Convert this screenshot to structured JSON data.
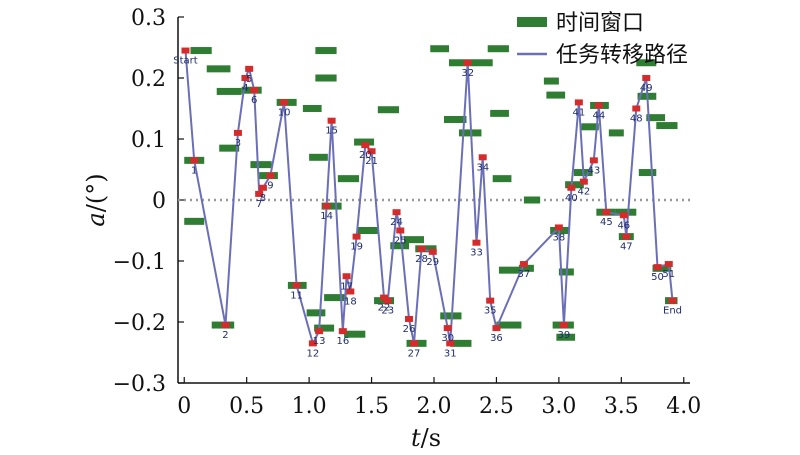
{
  "chart_data": {
    "type": "line",
    "xlabel": {
      "symbol": "t",
      "unit": "/s"
    },
    "ylabel": {
      "symbol": "a",
      "unit": "/(°)"
    },
    "xlim": [
      -0.05,
      4.05
    ],
    "ylim": [
      -0.3,
      0.3
    ],
    "xticks": [
      0.0,
      0.5,
      1.0,
      1.5,
      2.0,
      2.5,
      3.0,
      3.5,
      4.0
    ],
    "xtick_labels": [
      "0",
      "0.5",
      "1.0",
      "1.5",
      "2.0",
      "2.5",
      "3.0",
      "3.5",
      "4.0"
    ],
    "yticks": [
      0.3,
      0.2,
      0.1,
      0.0,
      -0.1,
      -0.2,
      -0.3
    ],
    "ytick_labels": [
      "0.3",
      "0.2",
      "0.1",
      "0",
      "−0.1",
      "−0.2",
      "−0.3"
    ],
    "zero_line": {
      "y": 0.0,
      "style": "dotted",
      "color": "#999999"
    },
    "legend": {
      "position": "top-right",
      "items": [
        {
          "name": "时间窗口",
          "color": "#2e7d32",
          "kind": "bar"
        },
        {
          "name": "任务转移路径",
          "color": "#6b6fb8",
          "kind": "line"
        }
      ]
    },
    "colors": {
      "window": "#2e7d32",
      "path": "#6b6fb8",
      "node": "#d62b2b",
      "label": "#1f2d6b"
    },
    "path": [
      {
        "label": "Start",
        "x": 0.01,
        "y": 0.245
      },
      {
        "label": "1",
        "x": 0.08,
        "y": 0.065
      },
      {
        "label": "2",
        "x": 0.33,
        "y": -0.205
      },
      {
        "label": "3",
        "x": 0.43,
        "y": 0.11
      },
      {
        "label": "4",
        "x": 0.49,
        "y": 0.2
      },
      {
        "label": "5",
        "x": 0.52,
        "y": 0.215
      },
      {
        "label": "6",
        "x": 0.56,
        "y": 0.18
      },
      {
        "label": "7",
        "x": 0.6,
        "y": 0.01
      },
      {
        "label": "8",
        "x": 0.63,
        "y": 0.02
      },
      {
        "label": "9",
        "x": 0.69,
        "y": 0.04
      },
      {
        "label": "10",
        "x": 0.8,
        "y": 0.16
      },
      {
        "label": "11",
        "x": 0.9,
        "y": -0.14
      },
      {
        "label": "12",
        "x": 1.03,
        "y": -0.235
      },
      {
        "label": "13",
        "x": 1.08,
        "y": -0.215
      },
      {
        "label": "14",
        "x": 1.14,
        "y": -0.01
      },
      {
        "label": "15",
        "x": 1.18,
        "y": 0.13
      },
      {
        "label": "16",
        "x": 1.27,
        "y": -0.215
      },
      {
        "label": "17",
        "x": 1.3,
        "y": -0.125
      },
      {
        "label": "18",
        "x": 1.33,
        "y": -0.15
      },
      {
        "label": "19",
        "x": 1.38,
        "y": -0.06
      },
      {
        "label": "20",
        "x": 1.45,
        "y": 0.09
      },
      {
        "label": "21",
        "x": 1.5,
        "y": 0.08
      },
      {
        "label": "22",
        "x": 1.6,
        "y": -0.16
      },
      {
        "label": "23",
        "x": 1.63,
        "y": -0.165
      },
      {
        "label": "24",
        "x": 1.7,
        "y": -0.02
      },
      {
        "label": "25",
        "x": 1.73,
        "y": -0.05
      },
      {
        "label": "26",
        "x": 1.8,
        "y": -0.195
      },
      {
        "label": "27",
        "x": 1.84,
        "y": -0.235
      },
      {
        "label": "28",
        "x": 1.9,
        "y": -0.08
      },
      {
        "label": "29",
        "x": 1.99,
        "y": -0.085
      },
      {
        "label": "30",
        "x": 2.11,
        "y": -0.21
      },
      {
        "label": "31",
        "x": 2.13,
        "y": -0.235
      },
      {
        "label": "32",
        "x": 2.27,
        "y": 0.225
      },
      {
        "label": "33",
        "x": 2.34,
        "y": -0.07
      },
      {
        "label": "34",
        "x": 2.39,
        "y": 0.07
      },
      {
        "label": "35",
        "x": 2.45,
        "y": -0.165
      },
      {
        "label": "36",
        "x": 2.5,
        "y": -0.21
      },
      {
        "label": "37",
        "x": 2.72,
        "y": -0.105
      },
      {
        "label": "38",
        "x": 3.0,
        "y": -0.045
      },
      {
        "label": "39",
        "x": 3.04,
        "y": -0.205
      },
      {
        "label": "40",
        "x": 3.1,
        "y": 0.02
      },
      {
        "label": "41",
        "x": 3.16,
        "y": 0.16
      },
      {
        "label": "42",
        "x": 3.2,
        "y": 0.03
      },
      {
        "label": "43",
        "x": 3.28,
        "y": 0.065
      },
      {
        "label": "44",
        "x": 3.32,
        "y": 0.155
      },
      {
        "label": "45",
        "x": 3.38,
        "y": -0.02
      },
      {
        "label": "46",
        "x": 3.52,
        "y": -0.025
      },
      {
        "label": "47",
        "x": 3.54,
        "y": -0.06
      },
      {
        "label": "48",
        "x": 3.62,
        "y": 0.15
      },
      {
        "label": "49",
        "x": 3.7,
        "y": 0.2
      },
      {
        "label": "50",
        "x": 3.79,
        "y": -0.11
      },
      {
        "label": "51",
        "x": 3.88,
        "y": -0.105
      },
      {
        "label": "End",
        "x": 3.91,
        "y": -0.165
      }
    ],
    "time_windows": [
      {
        "x0": 0.05,
        "x1": 0.22,
        "y": 0.245
      },
      {
        "x0": 0.18,
        "x1": 0.37,
        "y": 0.215
      },
      {
        "x0": 0.26,
        "x1": 0.46,
        "y": 0.178
      },
      {
        "x0": 0.0,
        "x1": 0.16,
        "y": 0.065
      },
      {
        "x0": 0.0,
        "x1": 0.16,
        "y": -0.035
      },
      {
        "x0": 0.28,
        "x1": 0.44,
        "y": 0.085
      },
      {
        "x0": 0.22,
        "x1": 0.4,
        "y": -0.205
      },
      {
        "x0": 0.46,
        "x1": 0.62,
        "y": 0.18
      },
      {
        "x0": 0.53,
        "x1": 0.7,
        "y": 0.058
      },
      {
        "x0": 0.6,
        "x1": 0.75,
        "y": 0.04
      },
      {
        "x0": 0.74,
        "x1": 0.9,
        "y": 0.16
      },
      {
        "x0": 0.83,
        "x1": 0.98,
        "y": -0.14
      },
      {
        "x0": 0.95,
        "x1": 1.1,
        "y": 0.15
      },
      {
        "x0": 1.05,
        "x1": 1.22,
        "y": 0.245
      },
      {
        "x0": 1.05,
        "x1": 1.22,
        "y": 0.2
      },
      {
        "x0": 1.0,
        "x1": 1.15,
        "y": 0.07
      },
      {
        "x0": 0.98,
        "x1": 1.13,
        "y": -0.185
      },
      {
        "x0": 1.04,
        "x1": 1.2,
        "y": -0.21
      },
      {
        "x0": 1.1,
        "x1": 1.26,
        "y": -0.01
      },
      {
        "x0": 1.12,
        "x1": 1.3,
        "y": -0.16
      },
      {
        "x0": 1.23,
        "x1": 1.4,
        "y": 0.035
      },
      {
        "x0": 1.28,
        "x1": 1.45,
        "y": -0.22
      },
      {
        "x0": 1.36,
        "x1": 1.52,
        "y": 0.095
      },
      {
        "x0": 1.38,
        "x1": 1.55,
        "y": -0.05
      },
      {
        "x0": 1.55,
        "x1": 1.72,
        "y": 0.148
      },
      {
        "x0": 1.52,
        "x1": 1.68,
        "y": -0.165
      },
      {
        "x0": 1.65,
        "x1": 1.8,
        "y": -0.075
      },
      {
        "x0": 1.76,
        "x1": 1.92,
        "y": -0.065
      },
      {
        "x0": 1.78,
        "x1": 1.94,
        "y": -0.235
      },
      {
        "x0": 1.85,
        "x1": 2.02,
        "y": -0.08
      },
      {
        "x0": 1.97,
        "x1": 2.12,
        "y": 0.248
      },
      {
        "x0": 2.05,
        "x1": 2.22,
        "y": -0.19
      },
      {
        "x0": 2.08,
        "x1": 2.26,
        "y": 0.132
      },
      {
        "x0": 2.12,
        "x1": 2.3,
        "y": 0.225
      },
      {
        "x0": 2.2,
        "x1": 2.38,
        "y": 0.11
      },
      {
        "x0": 2.3,
        "x1": 2.47,
        "y": 0.225
      },
      {
        "x0": 2.13,
        "x1": 2.3,
        "y": -0.235
      },
      {
        "x0": 2.43,
        "x1": 2.6,
        "y": 0.248
      },
      {
        "x0": 2.45,
        "x1": 2.6,
        "y": 0.142
      },
      {
        "x0": 2.52,
        "x1": 2.7,
        "y": -0.115
      },
      {
        "x0": 2.5,
        "x1": 2.7,
        "y": -0.205
      },
      {
        "x0": 2.47,
        "x1": 2.62,
        "y": 0.035
      },
      {
        "x0": 2.68,
        "x1": 2.8,
        "y": -0.112
      },
      {
        "x0": 2.72,
        "x1": 2.85,
        "y": 0.0
      },
      {
        "x0": 2.88,
        "x1": 3.0,
        "y": 0.195
      },
      {
        "x0": 2.9,
        "x1": 3.05,
        "y": 0.172
      },
      {
        "x0": 2.93,
        "x1": 3.08,
        "y": -0.05
      },
      {
        "x0": 2.95,
        "x1": 3.12,
        "y": -0.205
      },
      {
        "x0": 2.98,
        "x1": 3.13,
        "y": -0.225
      },
      {
        "x0": 3.0,
        "x1": 3.12,
        "y": -0.118
      },
      {
        "x0": 3.05,
        "x1": 3.2,
        "y": 0.025
      },
      {
        "x0": 3.12,
        "x1": 3.27,
        "y": 0.045
      },
      {
        "x0": 3.18,
        "x1": 3.32,
        "y": 0.12
      },
      {
        "x0": 3.25,
        "x1": 3.4,
        "y": 0.155
      },
      {
        "x0": 3.3,
        "x1": 3.45,
        "y": -0.02
      },
      {
        "x0": 3.4,
        "x1": 3.52,
        "y": 0.11
      },
      {
        "x0": 3.45,
        "x1": 3.62,
        "y": -0.02
      },
      {
        "x0": 3.48,
        "x1": 3.6,
        "y": -0.06
      },
      {
        "x0": 3.62,
        "x1": 3.78,
        "y": 0.225
      },
      {
        "x0": 3.63,
        "x1": 3.78,
        "y": 0.17
      },
      {
        "x0": 3.64,
        "x1": 3.78,
        "y": 0.045
      },
      {
        "x0": 3.7,
        "x1": 3.85,
        "y": 0.135
      },
      {
        "x0": 3.78,
        "x1": 3.95,
        "y": 0.122
      },
      {
        "x0": 3.75,
        "x1": 3.9,
        "y": -0.112
      },
      {
        "x0": 3.85,
        "x1": 3.95,
        "y": -0.165
      }
    ]
  }
}
